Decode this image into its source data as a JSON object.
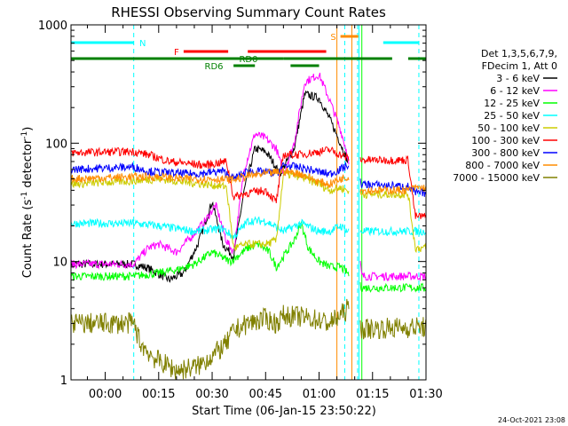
{
  "chart_data": {
    "type": "line",
    "title": "RHESSI Observing Summary Count Rates",
    "xlabel": "Start Time (06-Jan-15 23:50:22)",
    "ylabel_main": "Count Rate (s",
    "ylabel_sup": "-1",
    "ylabel_rest": " detector",
    "ylabel_sup2": "-1",
    "ylabel_close": ")",
    "y_scale": "log",
    "ylim": [
      1,
      1000
    ],
    "xlim_minutes": [
      -9.6,
      90
    ],
    "x_ticks": [
      {
        "m": 0,
        "label": "00:00"
      },
      {
        "m": 15,
        "label": "00:15"
      },
      {
        "m": 30,
        "label": "00:30"
      },
      {
        "m": 45,
        "label": "00:45"
      },
      {
        "m": 60,
        "label": "01:00"
      },
      {
        "m": 75,
        "label": "01:15"
      },
      {
        "m": 90,
        "label": "01:30"
      }
    ],
    "y_ticks": [
      {
        "v": 1,
        "label": "1"
      },
      {
        "v": 10,
        "label": "10"
      },
      {
        "v": 100,
        "label": "100"
      },
      {
        "v": 1000,
        "label": "1000"
      }
    ],
    "legend_header": [
      "Det 1,3,5,6,7,9,",
      "FDecim 1, Att 0"
    ],
    "legend_position": "right",
    "timestamp": "24-Oct-2021 23:08",
    "flags": [
      {
        "label": "N",
        "color": "#00ffff",
        "y": 695,
        "segments": [
          [
            -9.6,
            8
          ],
          [
            78,
            88
          ]
        ],
        "label_m": 10.5
      },
      {
        "label": "F",
        "color": "#ff0000",
        "y": 575,
        "segments": [
          [
            22,
            34.5
          ],
          [
            40,
            62
          ]
        ],
        "label_m": 20
      },
      {
        "label": "S",
        "color": "#ff8c00",
        "y": 760,
        "segments": [
          [
            66,
            71
          ]
        ],
        "label_m": 64
      },
      {
        "label": "RD0",
        "color": "#008000",
        "y": 510,
        "segments": [
          [
            -9.6,
            50
          ],
          [
            50,
            80.5
          ],
          [
            85,
            90
          ]
        ],
        "label_m": 40.2
      },
      {
        "label": "RD6",
        "color": "#008000",
        "y": 440,
        "segments": [
          [
            36,
            42
          ],
          [
            52,
            60
          ]
        ],
        "label_m": 30.5
      }
    ],
    "vlines": [
      {
        "m": -9.6,
        "color": "#00ffff",
        "style": "dashed"
      },
      {
        "m": 8,
        "color": "#00ffff",
        "style": "dashed"
      },
      {
        "m": 67.2,
        "color": "#00ffff",
        "style": "dashed"
      },
      {
        "m": 70.8,
        "color": "#00ffff",
        "style": "dashed"
      },
      {
        "m": 88,
        "color": "#00ffff",
        "style": "dashed"
      },
      {
        "m": 65,
        "color": "#ff8c00",
        "style": "solid"
      },
      {
        "m": 69.2,
        "color": "#ff8c00",
        "style": "solid"
      },
      {
        "m": 72,
        "color": "#00ff00",
        "style": "solid"
      },
      {
        "m": 71.2,
        "color": "#00ffff",
        "style": "solid"
      }
    ],
    "gaps": [
      [
        68.5,
        71.5
      ]
    ],
    "series": [
      {
        "name": "3 - 6 keV",
        "color": "#000000",
        "points": [
          [
            -9.6,
            9.5
          ],
          [
            8,
            9.5
          ],
          [
            12,
            8.8
          ],
          [
            18,
            7
          ],
          [
            22,
            8
          ],
          [
            26,
            14
          ],
          [
            30,
            32
          ],
          [
            33,
            14
          ],
          [
            36,
            11
          ],
          [
            39,
            40
          ],
          [
            42,
            90
          ],
          [
            45,
            85
          ],
          [
            47,
            70
          ],
          [
            49,
            55
          ],
          [
            53,
            90
          ],
          [
            56,
            260
          ],
          [
            60,
            240
          ],
          [
            63,
            160
          ],
          [
            66,
            100
          ],
          [
            68,
            70
          ]
        ]
      },
      {
        "name": "6 - 12 keV",
        "color": "#ff00ff",
        "points": [
          [
            -9.6,
            9.5
          ],
          [
            8,
            9.5
          ],
          [
            12,
            13
          ],
          [
            15,
            14
          ],
          [
            20,
            12
          ],
          [
            24,
            16
          ],
          [
            28,
            22
          ],
          [
            31,
            30
          ],
          [
            34,
            15
          ],
          [
            36,
            12
          ],
          [
            39,
            60
          ],
          [
            42,
            120
          ],
          [
            45,
            110
          ],
          [
            48,
            90
          ],
          [
            50,
            55
          ],
          [
            53,
            100
          ],
          [
            56,
            330
          ],
          [
            60,
            380
          ],
          [
            63,
            230
          ],
          [
            66,
            130
          ],
          [
            68,
            80
          ],
          [
            72,
            7.5
          ],
          [
            90,
            7.5
          ]
        ]
      },
      {
        "name": "12 - 25 keV",
        "color": "#00ff00",
        "points": [
          [
            -9.6,
            7.5
          ],
          [
            8,
            7.5
          ],
          [
            15,
            8
          ],
          [
            20,
            8.5
          ],
          [
            25,
            9.5
          ],
          [
            30,
            12
          ],
          [
            35,
            10
          ],
          [
            37,
            11
          ],
          [
            40,
            13
          ],
          [
            43,
            14
          ],
          [
            46,
            12
          ],
          [
            48,
            9
          ],
          [
            50,
            11
          ],
          [
            53,
            15
          ],
          [
            55,
            21
          ],
          [
            57,
            13
          ],
          [
            60,
            10
          ],
          [
            63,
            9
          ],
          [
            66,
            9
          ],
          [
            68,
            8
          ],
          [
            72,
            6
          ],
          [
            90,
            6
          ]
        ]
      },
      {
        "name": "25 - 50 keV",
        "color": "#00ffff",
        "points": [
          [
            -9.6,
            21
          ],
          [
            8,
            21
          ],
          [
            15,
            20
          ],
          [
            25,
            18
          ],
          [
            33,
            19
          ],
          [
            36,
            16
          ],
          [
            40,
            22
          ],
          [
            45,
            22
          ],
          [
            50,
            18
          ],
          [
            55,
            21
          ],
          [
            60,
            18
          ],
          [
            63,
            18
          ],
          [
            66,
            20
          ],
          [
            68,
            18
          ],
          [
            72,
            18
          ],
          [
            90,
            18
          ]
        ]
      },
      {
        "name": "50 - 100 keV",
        "color": "#cccc00",
        "points": [
          [
            -9.6,
            45
          ],
          [
            8,
            48
          ],
          [
            15,
            50
          ],
          [
            22,
            47
          ],
          [
            28,
            45
          ],
          [
            34,
            43
          ],
          [
            36,
            13
          ],
          [
            40,
            14
          ],
          [
            45,
            14
          ],
          [
            48,
            15
          ],
          [
            50,
            55
          ],
          [
            55,
            52
          ],
          [
            60,
            45
          ],
          [
            63,
            40
          ],
          [
            66,
            42
          ],
          [
            68,
            40
          ],
          [
            72,
            37
          ],
          [
            85,
            37
          ],
          [
            87,
            13
          ],
          [
            90,
            13
          ]
        ]
      },
      {
        "name": "100 - 300 keV",
        "color": "#ff0000",
        "points": [
          [
            -9.6,
            83
          ],
          [
            8,
            85
          ],
          [
            12,
            80
          ],
          [
            18,
            70
          ],
          [
            22,
            68
          ],
          [
            28,
            65
          ],
          [
            34,
            70
          ],
          [
            36,
            35
          ],
          [
            40,
            38
          ],
          [
            45,
            40
          ],
          [
            48,
            32
          ],
          [
            50,
            80
          ],
          [
            55,
            80
          ],
          [
            60,
            85
          ],
          [
            63,
            88
          ],
          [
            66,
            80
          ],
          [
            68,
            75
          ],
          [
            72,
            72
          ],
          [
            85,
            72
          ],
          [
            87,
            24
          ],
          [
            90,
            24
          ]
        ]
      },
      {
        "name": "300 - 800 keV",
        "color": "#0000ff",
        "points": [
          [
            -9.6,
            60
          ],
          [
            8,
            63
          ],
          [
            12,
            58
          ],
          [
            18,
            56
          ],
          [
            25,
            55
          ],
          [
            33,
            58
          ],
          [
            36,
            50
          ],
          [
            40,
            58
          ],
          [
            45,
            57
          ],
          [
            48,
            55
          ],
          [
            50,
            65
          ],
          [
            55,
            62
          ],
          [
            60,
            57
          ],
          [
            63,
            55
          ],
          [
            66,
            60
          ],
          [
            68,
            65
          ],
          [
            72,
            45
          ],
          [
            85,
            43
          ],
          [
            87,
            38
          ],
          [
            90,
            38
          ]
        ]
      },
      {
        "name": "800 - 7000 keV",
        "color": "#ff8c00",
        "points": [
          [
            -9.6,
            50
          ],
          [
            8,
            52
          ],
          [
            15,
            52
          ],
          [
            22,
            50
          ],
          [
            30,
            50
          ],
          [
            36,
            49
          ],
          [
            40,
            53
          ],
          [
            45,
            55
          ],
          [
            50,
            58
          ],
          [
            55,
            55
          ],
          [
            60,
            47
          ],
          [
            63,
            45
          ],
          [
            66,
            50
          ],
          [
            68,
            52
          ],
          [
            72,
            40
          ],
          [
            85,
            40
          ],
          [
            87,
            42
          ],
          [
            90,
            42
          ]
        ]
      },
      {
        "name": "7000 - 15000 keV",
        "color": "#808000",
        "points": [
          [
            -9.6,
            3
          ],
          [
            8,
            3
          ],
          [
            10,
            2
          ],
          [
            14,
            1.5
          ],
          [
            20,
            1.2
          ],
          [
            26,
            1.3
          ],
          [
            30,
            1.6
          ],
          [
            34,
            2
          ],
          [
            36,
            2.6
          ],
          [
            40,
            3
          ],
          [
            45,
            3.3
          ],
          [
            48,
            3
          ],
          [
            50,
            3.5
          ],
          [
            55,
            3.4
          ],
          [
            60,
            3.2
          ],
          [
            63,
            3
          ],
          [
            66,
            3.5
          ],
          [
            68,
            4
          ],
          [
            72,
            2.7
          ],
          [
            90,
            2.8
          ]
        ]
      }
    ]
  }
}
